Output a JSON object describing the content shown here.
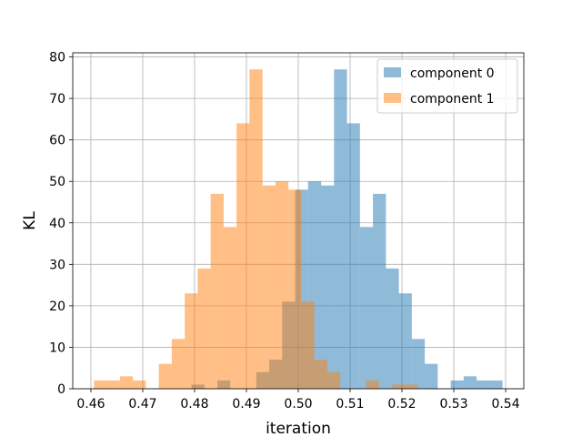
{
  "chart_data": {
    "type": "bar",
    "subtype": "overlapping-histogram",
    "xlabel": "iteration",
    "ylabel": "KL",
    "xlim": [
      0.4565,
      0.5435
    ],
    "ylim": [
      0,
      81
    ],
    "xticks": [
      "0.46",
      "0.47",
      "0.48",
      "0.49",
      "0.50",
      "0.51",
      "0.52",
      "0.53",
      "0.54"
    ],
    "yticks": [
      "0",
      "10",
      "20",
      "30",
      "40",
      "50",
      "60",
      "70",
      "80"
    ],
    "grid": true,
    "legend_position": "top-right",
    "series": [
      {
        "name": "component 0",
        "color": "#1f77b4",
        "alpha": 0.5,
        "bins": [
          {
            "x0": 0.4794,
            "x1": 0.4819,
            "y": 1
          },
          {
            "x0": 0.4844,
            "x1": 0.4869,
            "y": 2
          },
          {
            "x0": 0.4919,
            "x1": 0.4944,
            "y": 4
          },
          {
            "x0": 0.4944,
            "x1": 0.4969,
            "y": 7
          },
          {
            "x0": 0.4969,
            "x1": 0.4994,
            "y": 21
          },
          {
            "x0": 0.4994,
            "x1": 0.5019,
            "y": 48
          },
          {
            "x0": 0.5019,
            "x1": 0.5044,
            "y": 50
          },
          {
            "x0": 0.5044,
            "x1": 0.5069,
            "y": 49
          },
          {
            "x0": 0.5069,
            "x1": 0.5094,
            "y": 77
          },
          {
            "x0": 0.5094,
            "x1": 0.5119,
            "y": 64
          },
          {
            "x0": 0.5119,
            "x1": 0.5144,
            "y": 39
          },
          {
            "x0": 0.5144,
            "x1": 0.5169,
            "y": 47
          },
          {
            "x0": 0.5169,
            "x1": 0.5194,
            "y": 29
          },
          {
            "x0": 0.5194,
            "x1": 0.5219,
            "y": 23
          },
          {
            "x0": 0.5219,
            "x1": 0.5244,
            "y": 12
          },
          {
            "x0": 0.5244,
            "x1": 0.5269,
            "y": 6
          },
          {
            "x0": 0.5294,
            "x1": 0.5319,
            "y": 2
          },
          {
            "x0": 0.5319,
            "x1": 0.5344,
            "y": 3
          },
          {
            "x0": 0.5344,
            "x1": 0.5369,
            "y": 2
          },
          {
            "x0": 0.5369,
            "x1": 0.5394,
            "y": 2
          }
        ]
      },
      {
        "name": "component 1",
        "color": "#ff7f0e",
        "alpha": 0.5,
        "bins": [
          {
            "x0": 0.4606,
            "x1": 0.4631,
            "y": 2
          },
          {
            "x0": 0.4631,
            "x1": 0.4656,
            "y": 2
          },
          {
            "x0": 0.4656,
            "x1": 0.4681,
            "y": 3
          },
          {
            "x0": 0.4681,
            "x1": 0.4706,
            "y": 2
          },
          {
            "x0": 0.4731,
            "x1": 0.4756,
            "y": 6
          },
          {
            "x0": 0.4756,
            "x1": 0.4781,
            "y": 12
          },
          {
            "x0": 0.4781,
            "x1": 0.4806,
            "y": 23
          },
          {
            "x0": 0.4806,
            "x1": 0.4831,
            "y": 29
          },
          {
            "x0": 0.4831,
            "x1": 0.4856,
            "y": 47
          },
          {
            "x0": 0.4856,
            "x1": 0.4881,
            "y": 39
          },
          {
            "x0": 0.4881,
            "x1": 0.4906,
            "y": 64
          },
          {
            "x0": 0.4906,
            "x1": 0.4931,
            "y": 77
          },
          {
            "x0": 0.4931,
            "x1": 0.4956,
            "y": 49
          },
          {
            "x0": 0.4956,
            "x1": 0.4981,
            "y": 50
          },
          {
            "x0": 0.4981,
            "x1": 0.5006,
            "y": 48
          },
          {
            "x0": 0.5006,
            "x1": 0.5031,
            "y": 21
          },
          {
            "x0": 0.5031,
            "x1": 0.5056,
            "y": 7
          },
          {
            "x0": 0.5056,
            "x1": 0.5081,
            "y": 4
          },
          {
            "x0": 0.5131,
            "x1": 0.5156,
            "y": 2
          },
          {
            "x0": 0.5181,
            "x1": 0.5206,
            "y": 1
          },
          {
            "x0": 0.5206,
            "x1": 0.5231,
            "y": 1
          }
        ]
      }
    ]
  }
}
